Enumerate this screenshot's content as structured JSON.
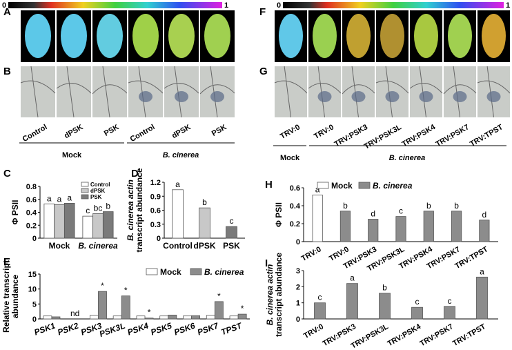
{
  "panels": {
    "letters": [
      "A",
      "B",
      "F",
      "G"
    ],
    "colorbar": [
      "0",
      "1"
    ],
    "left": {
      "samples": [
        "Control",
        "dPSK",
        "PSK",
        "Control",
        "dPSK",
        "PSK"
      ],
      "groups": [
        "Mock",
        "B. cinerea"
      ]
    },
    "right": {
      "samples": [
        "TRV:0",
        "TRV:0",
        "TRV:PSK3",
        "TRV:PSK3L",
        "TRV:PSK4",
        "TRV:PSK7",
        "TRV:TPST"
      ],
      "groups": [
        "Mock",
        "B. cinerea"
      ]
    }
  },
  "chart_data": [
    {
      "type": "bar",
      "panel": "C",
      "ylabel": [
        "Φ PSII"
      ],
      "categories": [
        "Mock",
        "B. cinerea"
      ],
      "series": [
        {
          "name": "Control",
          "color": "#ffffff",
          "values": [
            0.53,
            0.34
          ],
          "letters": [
            "a",
            "c"
          ]
        },
        {
          "name": "dPSK",
          "color": "#c8c8c8",
          "values": [
            0.52,
            0.38
          ],
          "letters": [
            "a",
            "bc"
          ]
        },
        {
          "name": "PSK",
          "color": "#7a7a7a",
          "values": [
            0.54,
            0.41
          ],
          "letters": [
            "a",
            "b"
          ]
        }
      ],
      "ylim": [
        0,
        0.8
      ],
      "yticks": [
        0,
        0.2,
        0.4,
        0.6,
        0.8
      ],
      "legend": "upper right"
    },
    {
      "type": "bar",
      "panel": "D",
      "ylabel": [
        "B. cinerea actin",
        "transcript abundance"
      ],
      "categories": [
        "Control",
        "dPSK",
        "PSK"
      ],
      "series": [
        {
          "colors": [
            "#ffffff",
            "#c8c8c8",
            "#7a7a7a"
          ],
          "values": [
            1.04,
            0.65,
            0.25
          ],
          "letters": [
            "a",
            "b",
            "c"
          ]
        }
      ],
      "ylim": [
        0,
        1.2
      ],
      "yticks": [
        0,
        0.3,
        0.6,
        0.9,
        1.2
      ]
    },
    {
      "type": "bar",
      "panel": "E",
      "ylabel": [
        "Relative transcript",
        "abundance"
      ],
      "categories": [
        "PSK1",
        "PSK2",
        "PSK3",
        "PSK3L",
        "PSK4",
        "PSK5",
        "PSK6",
        "PSK7",
        "TPST"
      ],
      "series": [
        {
          "name": "Mock",
          "color": "#ffffff",
          "values": [
            1.0,
            null,
            1.2,
            1.0,
            1.0,
            1.0,
            1.0,
            1.2,
            1.0
          ],
          "letters": [
            null,
            "nd",
            null,
            null,
            null,
            null,
            null,
            null,
            null
          ]
        },
        {
          "name": "B. cinerea",
          "color": "#8c8c8c",
          "values": [
            0.7,
            null,
            9.2,
            7.7,
            0.3,
            1.3,
            1.1,
            5.8,
            1.6
          ],
          "letters": [
            null,
            null,
            "*",
            "*",
            "*",
            null,
            null,
            "*",
            "*"
          ]
        }
      ],
      "ylim": [
        0,
        15
      ],
      "yticks": [
        0,
        5,
        10,
        15
      ],
      "legend": "upper right"
    },
    {
      "type": "bar",
      "panel": "H",
      "ylabel": [
        "Φ PSII"
      ],
      "categories": [
        "TRV:0",
        "TRV:0",
        "TRV:PSK3",
        "TRV:PSK3L",
        "TRV:PSK4",
        "TRV:PSK7",
        "TRV:TPST"
      ],
      "series": [
        {
          "name": "Mock",
          "color": "#ffffff",
          "values": [
            0.52,
            null,
            null,
            null,
            null,
            null,
            null
          ],
          "letters": [
            "a",
            null,
            null,
            null,
            null,
            null,
            null
          ]
        },
        {
          "name": "B. cinerea",
          "color": "#8c8c8c",
          "values": [
            null,
            0.34,
            0.25,
            0.28,
            0.34,
            0.34,
            0.24
          ],
          "letters": [
            null,
            "b",
            "d",
            "c",
            "b",
            "b",
            "d"
          ]
        }
      ],
      "ylim": [
        0,
        0.6
      ],
      "yticks": [
        0,
        0.2,
        0.4,
        0.6
      ],
      "legend": "upper left"
    },
    {
      "type": "bar",
      "panel": "I",
      "ylabel": [
        "B. cinerea actin",
        "transcript abundance"
      ],
      "categories": [
        "TRV:0",
        "TRV:PSK3",
        "TRV:PSK3L",
        "TRV:PSK4",
        "TRV:PSK7",
        "TRV:TPST"
      ],
      "series": [
        {
          "colors": [
            "#8c8c8c",
            "#8c8c8c",
            "#8c8c8c",
            "#8c8c8c",
            "#8c8c8c",
            "#8c8c8c"
          ],
          "values": [
            1.0,
            2.2,
            1.6,
            0.72,
            0.78,
            2.6
          ],
          "letters": [
            "c",
            "a",
            "b",
            "c",
            "c",
            "a"
          ]
        }
      ],
      "ylim": [
        0,
        3
      ],
      "yticks": [
        0,
        1,
        2,
        3
      ]
    }
  ]
}
